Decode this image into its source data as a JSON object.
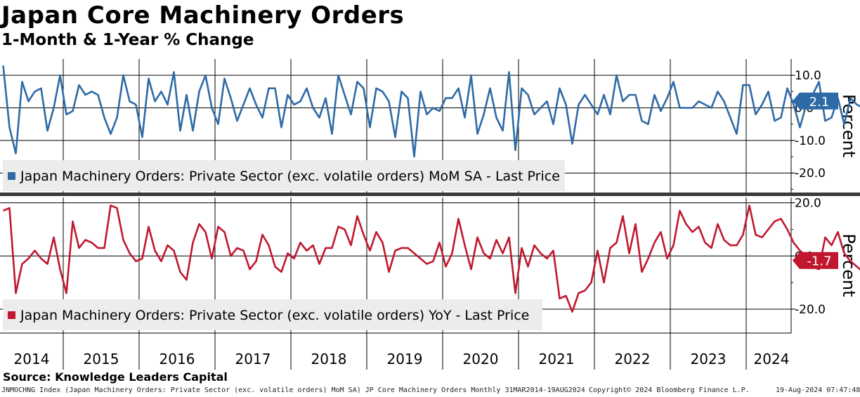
{
  "header": {
    "title": "Japan Core Machinery Orders",
    "subtitle": "1-Month & 1-Year % Change"
  },
  "footer": {
    "source": "Source: Knowledge Leaders Capital",
    "ticker_line": "JNMOCHNG Index (Japan Machinery Orders: Private Sector (exc. volatile orders) MoM SA) JP Core Machinery Orders  Monthly 31MAR2014-19AUG2024",
    "copyright": "Copyright© 2024 Bloomberg Finance L.P.",
    "timestamp": "19-Aug-2024 07:47:48"
  },
  "colors": {
    "mom_series": "#2e6aa6",
    "yoy_series": "#c0172f",
    "legend_bg": "#ececec",
    "grid": "#000000"
  },
  "chart_data": [
    {
      "type": "line",
      "panel": "top",
      "ylabel": "Percent",
      "ylim": [
        -26.0,
        15.0
      ],
      "y_ticks": [
        10.0,
        0.0,
        -10.0,
        -20.0
      ],
      "y_tick_labels": [
        "10.0",
        "0.0",
        "-10.0",
        "-20.0"
      ],
      "last_value_label": "2.1",
      "legend": "Japan Machinery Orders: Private Sector (exc. volatile orders) MoM SA - Last Price",
      "series": [
        {
          "start": "2014-03",
          "values": [
            13,
            -6,
            -14,
            8,
            2,
            5,
            6,
            -7,
            0,
            10,
            -2,
            -1,
            7,
            4,
            5,
            4,
            -3,
            -8,
            -3,
            10,
            2,
            1,
            -9,
            9,
            2,
            5,
            1,
            11,
            -7,
            4,
            -7,
            5,
            10,
            0,
            -5,
            9,
            3,
            -4,
            1,
            6,
            1,
            -3,
            6,
            6,
            -6,
            4,
            1,
            2,
            6,
            0,
            -3,
            3,
            -8,
            10,
            4,
            -2,
            8,
            6,
            -6,
            6,
            5,
            2,
            -9,
            5,
            3,
            -15,
            5,
            -2,
            0,
            -1,
            3,
            3,
            6,
            -3,
            10,
            -8,
            -2,
            6,
            -3,
            -7,
            11,
            -13,
            6,
            4,
            -2,
            0,
            2,
            -5,
            6,
            1,
            -11,
            1,
            4,
            1,
            -2,
            4,
            -2,
            10,
            2,
            4,
            4,
            -4,
            -5,
            4,
            -1,
            3,
            8,
            0,
            0,
            0,
            2,
            1,
            0,
            5,
            2,
            -3,
            -8,
            7,
            7,
            -2,
            1,
            5,
            -4,
            -3,
            6,
            1,
            -6,
            1,
            4,
            8,
            -4,
            -3,
            3,
            -5,
            3,
            1,
            0,
            2,
            1,
            -3,
            2,
            -1,
            8,
            5,
            -2,
            -3,
            2.1
          ]
        }
      ]
    },
    {
      "type": "line",
      "panel": "bottom",
      "ylabel": "Percent",
      "ylim": [
        -29.0,
        22.0
      ],
      "y_ticks": [
        20.0,
        0.0,
        -20.0
      ],
      "y_tick_labels": [
        "20.0",
        "0.0",
        "-20.0"
      ],
      "last_value_label": "-1.7",
      "legend": "Japan Machinery Orders: Private Sector (exc. volatile orders) YoY - Last Price",
      "series": [
        {
          "start": "2014-03",
          "values": [
            17,
            18,
            -14,
            -3,
            -1,
            2,
            -1,
            -3,
            7,
            -5,
            -14,
            13,
            3,
            6,
            5,
            3,
            3,
            19,
            18,
            6,
            1,
            -2,
            -1,
            11,
            2,
            -2,
            4,
            2,
            -6,
            -9,
            5,
            12,
            9,
            -1,
            11,
            9,
            0,
            3,
            2,
            -5,
            -2,
            8,
            4,
            -4,
            -6,
            1,
            -1,
            5,
            2,
            4,
            -3,
            3,
            3,
            11,
            10,
            4,
            15,
            8,
            2,
            9,
            5,
            -6,
            2,
            3,
            3,
            1,
            -1,
            -3,
            -2,
            5,
            -4,
            1,
            14,
            4,
            -5,
            7,
            1,
            -1,
            6,
            1,
            7,
            -14,
            3,
            -4,
            4,
            1,
            -1,
            2,
            -16,
            -15,
            -21,
            -14,
            -13,
            -10,
            2,
            -10,
            3,
            5,
            15,
            1,
            12,
            -6,
            -1,
            5,
            9,
            -1,
            4,
            17,
            12,
            9,
            11,
            5,
            3,
            12,
            6,
            4,
            4,
            8,
            19,
            8,
            7,
            10,
            13,
            14,
            10,
            5,
            2,
            0,
            -4,
            -5,
            7,
            4,
            9,
            1,
            -2,
            -4,
            -6,
            -9,
            -7,
            -13,
            -9,
            -5,
            -2,
            -2,
            -4,
            1,
            -10,
            -2,
            3,
            1,
            12,
            -1.7
          ]
        }
      ]
    }
  ],
  "x_axis": {
    "tick_labels": [
      "2014",
      "2015",
      "2016",
      "2017",
      "2018",
      "2019",
      "2020",
      "2021",
      "2022",
      "2023",
      "2024"
    ]
  }
}
